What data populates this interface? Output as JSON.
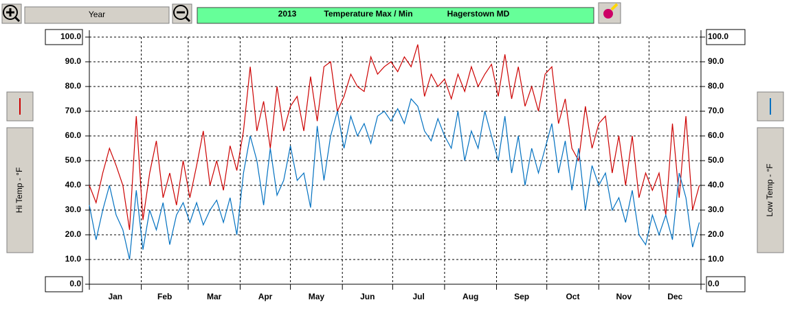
{
  "chart_data": {
    "type": "line",
    "year": "2013",
    "title": "Temperature Max / Min",
    "location": "Hagerstown MD",
    "zoom_label": "Year",
    "ylabel": "Hi Temp - °F",
    "y2label": "Low Temp - °F",
    "xlim": [
      0,
      365
    ],
    "xticks": [
      {
        "value": 15.5,
        "label": "Jan"
      },
      {
        "value": 45,
        "label": "Feb"
      },
      {
        "value": 74.5,
        "label": "Mar"
      },
      {
        "value": 105,
        "label": "Apr"
      },
      {
        "value": 135.5,
        "label": "May"
      },
      {
        "value": 166,
        "label": "Jun"
      },
      {
        "value": 196.5,
        "label": "Jul"
      },
      {
        "value": 227.5,
        "label": "Aug"
      },
      {
        "value": 258,
        "label": "Sep"
      },
      {
        "value": 288.5,
        "label": "Oct"
      },
      {
        "value": 319,
        "label": "Nov"
      },
      {
        "value": 349.5,
        "label": "Dec"
      }
    ],
    "xgrid": [
      31,
      59,
      90,
      120,
      151,
      181,
      212,
      243,
      273,
      304,
      334
    ],
    "ylim": [
      0,
      100
    ],
    "yticks": [
      {
        "value": 0,
        "label": "0.0"
      },
      {
        "value": 10,
        "label": "10.0"
      },
      {
        "value": 20,
        "label": "20.0"
      },
      {
        "value": 30,
        "label": "30.0"
      },
      {
        "value": 40,
        "label": "40.0"
      },
      {
        "value": 50,
        "label": "50.0"
      },
      {
        "value": 60,
        "label": "60.0"
      },
      {
        "value": 70,
        "label": "70.0"
      },
      {
        "value": 80,
        "label": "80.0"
      },
      {
        "value": 90,
        "label": "90.0"
      },
      {
        "value": 100,
        "label": "100.0"
      }
    ],
    "y2lim": [
      0,
      100
    ],
    "y2ticks": [
      {
        "value": 0,
        "label": "0.0"
      },
      {
        "value": 10,
        "label": "10.0"
      },
      {
        "value": 20,
        "label": "20.0"
      },
      {
        "value": 30,
        "label": "30.0"
      },
      {
        "value": 40,
        "label": "40.0"
      },
      {
        "value": 50,
        "label": "50.0"
      },
      {
        "value": 60,
        "label": "60.0"
      },
      {
        "value": 70,
        "label": "70.0"
      },
      {
        "value": 80,
        "label": "80.0"
      },
      {
        "value": 90,
        "label": "90.0"
      },
      {
        "value": 100,
        "label": "100.0"
      }
    ],
    "grid": true,
    "x": [
      0,
      4,
      8,
      12,
      16,
      20,
      24,
      28,
      32,
      36,
      40,
      44,
      48,
      52,
      56,
      60,
      64,
      68,
      72,
      76,
      80,
      84,
      88,
      92,
      96,
      100,
      104,
      108,
      112,
      116,
      120,
      124,
      128,
      132,
      136,
      140,
      144,
      148,
      152,
      156,
      160,
      164,
      168,
      172,
      176,
      180,
      184,
      188,
      192,
      196,
      200,
      204,
      208,
      212,
      216,
      220,
      224,
      228,
      232,
      236,
      240,
      244,
      248,
      252,
      256,
      260,
      264,
      268,
      272,
      276,
      280,
      284,
      288,
      292,
      296,
      300,
      304,
      308,
      312,
      316,
      320,
      324,
      328,
      332,
      336,
      340,
      344,
      348,
      352,
      356,
      360,
      364
    ],
    "series": [
      {
        "color": "#cc0000",
        "values": [
          40,
          33,
          45,
          55,
          48,
          40,
          22,
          68,
          26,
          45,
          58,
          35,
          45,
          32,
          50,
          35,
          48,
          62,
          40,
          50,
          38,
          56,
          46,
          62,
          88,
          62,
          74,
          55,
          80,
          62,
          72,
          76,
          62,
          84,
          66,
          88,
          90,
          70,
          76,
          85,
          80,
          78,
          92,
          85,
          88,
          90,
          86,
          92,
          88,
          97,
          76,
          85,
          80,
          83,
          75,
          85,
          78,
          88,
          80,
          85,
          89,
          76,
          93,
          75,
          88,
          72,
          80,
          70,
          85,
          88,
          65,
          75,
          55,
          50,
          72,
          55,
          65,
          68,
          45,
          60,
          40,
          60,
          35,
          45,
          38,
          45,
          28,
          65,
          35,
          68,
          30,
          40
        ]
      },
      {
        "color": "#0070c0",
        "axis": "y2",
        "values": [
          32,
          18,
          30,
          40,
          28,
          22,
          10,
          38,
          14,
          30,
          22,
          33,
          16,
          28,
          33,
          25,
          33,
          24,
          30,
          34,
          25,
          35,
          20,
          45,
          60,
          50,
          32,
          55,
          36,
          42,
          56,
          42,
          45,
          31,
          64,
          42,
          60,
          70,
          55,
          68,
          60,
          65,
          57,
          68,
          70,
          66,
          71,
          65,
          75,
          72,
          62,
          58,
          67,
          60,
          55,
          70,
          50,
          62,
          55,
          70,
          60,
          50,
          68,
          45,
          60,
          40,
          55,
          45,
          55,
          65,
          45,
          58,
          38,
          55,
          30,
          48,
          40,
          45,
          30,
          35,
          25,
          38,
          20,
          16,
          28,
          20,
          28,
          18,
          45,
          35,
          15,
          25
        ]
      }
    ]
  }
}
